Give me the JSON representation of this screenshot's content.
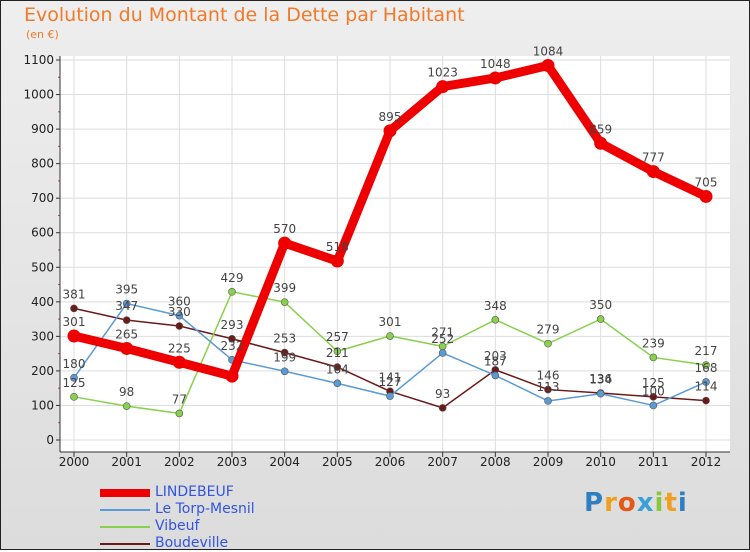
{
  "title": "Evolution du Montant de la Dette par Habitant",
  "unit": "(en €)",
  "logo": "Proxiti",
  "logo_colors": [
    "#2f7fc0",
    "#f0a020",
    "#e05a1a",
    "#3aa0d8",
    "#8cc63f",
    "#f0a020"
  ],
  "chart_data": {
    "type": "line",
    "x": [
      "2000",
      "2001",
      "2002",
      "2003",
      "2004",
      "2005",
      "2006",
      "2007",
      "2008",
      "2009",
      "2010",
      "2011",
      "2012"
    ],
    "ylim": [
      0,
      1100
    ],
    "yticks": [
      "0",
      "100",
      "200",
      "300",
      "400",
      "500",
      "600",
      "700",
      "800",
      "900",
      "1000",
      "1100"
    ],
    "grid": true,
    "legend_position": "bottom-left",
    "series": [
      {
        "name": "LINDEBEUF",
        "color": "#ee0000",
        "values": [
          301,
          265,
          225,
          185,
          570,
          518,
          895,
          1023,
          1048,
          1084,
          859,
          777,
          705
        ],
        "labels": [
          "301",
          "265",
          "225",
          "",
          "570",
          "518",
          "895",
          "1023",
          "1048",
          "1084",
          "859",
          "777",
          "705"
        ]
      },
      {
        "name": "Le Torp-Mesnil",
        "color": "#5a9bd5",
        "values": [
          180,
          395,
          360,
          232,
          199,
          164,
          127,
          252,
          187,
          113,
          134,
          100,
          168
        ],
        "labels": [
          "180",
          "395",
          "360",
          "232",
          "199",
          "164",
          "127",
          "252",
          "187",
          "113",
          "134",
          "100",
          "168"
        ]
      },
      {
        "name": "Vibeuf",
        "color": "#88d14c",
        "values": [
          125,
          98,
          77,
          429,
          399,
          257,
          301,
          271,
          348,
          279,
          350,
          239,
          217
        ],
        "labels": [
          "125",
          "98",
          "77",
          "429",
          "399",
          "257",
          "301",
          "271",
          "348",
          "279",
          "350",
          "239",
          "217"
        ]
      },
      {
        "name": "Boudeville",
        "color": "#6b1a1a",
        "values": [
          381,
          347,
          330,
          293,
          253,
          211,
          141,
          93,
          203,
          146,
          136,
          125,
          114
        ],
        "labels": [
          "381",
          "347",
          "330",
          "293",
          "253",
          "211",
          "141",
          "93",
          "203",
          "146",
          "136",
          "125",
          "114"
        ]
      }
    ]
  }
}
